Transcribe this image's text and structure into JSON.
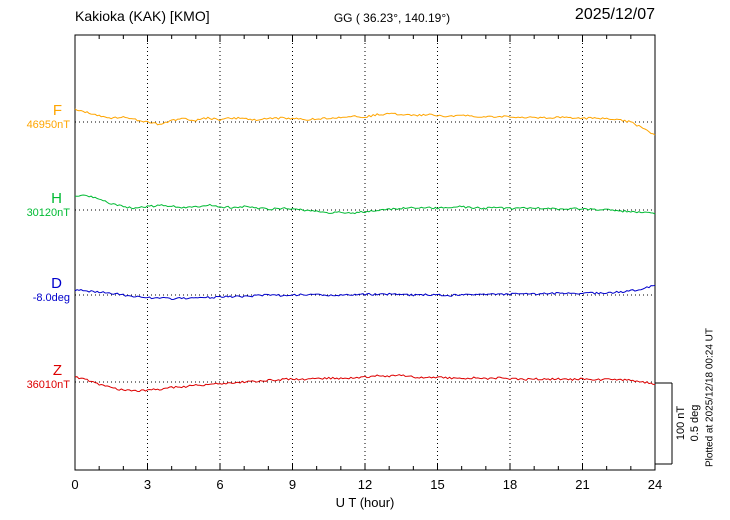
{
  "chart_data": {
    "type": "line",
    "title_left": "Kakioka (KAK)  [KMO]",
    "title_center": "GG ( 36.23°, 140.19°)",
    "title_right": "2025/12/07",
    "xlabel": "U T (hour)",
    "x_ticks": [
      0,
      3,
      6,
      9,
      12,
      15,
      18,
      21,
      24
    ],
    "x_range_hours": [
      0,
      24
    ],
    "x_step": 0.5,
    "grid": "dotted-vertical-every-3h",
    "scale": {
      "line1": "100 nT",
      "line2": "0.5 deg"
    },
    "plotted_at": "Plotted at 2025/12/18 00:24 UT",
    "series": [
      {
        "name": "F",
        "unit": "nT",
        "baseline_value": 46950,
        "baseline_label": "46950nT",
        "color": "#ffa500",
        "offsets": [
          15,
          12,
          8,
          5,
          6,
          3,
          0,
          -3,
          2,
          4,
          2,
          5,
          3,
          5,
          4,
          3,
          4,
          5,
          4,
          3,
          4,
          5,
          6,
          8,
          6,
          9,
          10,
          9,
          8,
          9,
          8,
          7,
          8,
          7,
          6,
          7,
          6,
          5,
          6,
          5,
          6,
          5,
          4,
          5,
          4,
          3,
          0,
          -8,
          -16
        ]
      },
      {
        "name": "H",
        "unit": "nT",
        "baseline_value": 30120,
        "baseline_label": "30120nT",
        "color": "#00bb33",
        "offsets": [
          16,
          18,
          14,
          8,
          4,
          2,
          4,
          6,
          5,
          3,
          4,
          6,
          4,
          3,
          4,
          2,
          1,
          2,
          1,
          0,
          -2,
          -4,
          -3,
          -4,
          -2,
          0,
          1,
          2,
          3,
          3,
          2,
          3,
          4,
          3,
          2,
          3,
          2,
          2,
          3,
          2,
          1,
          2,
          1,
          1,
          0,
          -1,
          -2,
          -3,
          -5
        ]
      },
      {
        "name": "D",
        "unit": "deg",
        "baseline_value": -8.0,
        "baseline_label": "-8.0deg",
        "color": "#0000cc",
        "offsets": [
          0.03,
          0.025,
          0.02,
          0.01,
          0,
          -0.01,
          -0.015,
          -0.02,
          -0.022,
          -0.02,
          -0.018,
          -0.015,
          -0.012,
          -0.01,
          -0.008,
          -0.005,
          0,
          -0.003,
          0,
          0.003,
          0,
          -0.003,
          0,
          0.003,
          0.005,
          0.003,
          0.005,
          0.003,
          0,
          0.003,
          0,
          -0.003,
          0,
          0.003,
          0.005,
          0.003,
          0.005,
          0.008,
          0.005,
          0.008,
          0.01,
          0.008,
          0.01,
          0.012,
          0.015,
          0.018,
          0.025,
          0.04,
          0.06
        ]
      },
      {
        "name": "Z",
        "unit": "nT",
        "baseline_value": 36010,
        "baseline_label": "36010nT",
        "color": "#dd0000",
        "offsets": [
          6,
          3,
          -3,
          -7,
          -10,
          -11,
          -10,
          -9,
          -7,
          -6,
          -4,
          -3,
          -2,
          -1,
          0,
          1,
          2,
          3,
          4,
          3,
          4,
          5,
          4,
          5,
          6,
          8,
          7,
          9,
          6,
          5,
          6,
          5,
          4,
          5,
          4,
          5,
          4,
          3,
          4,
          3,
          4,
          3,
          4,
          3,
          3,
          3,
          2,
          0,
          -3
        ]
      }
    ]
  }
}
